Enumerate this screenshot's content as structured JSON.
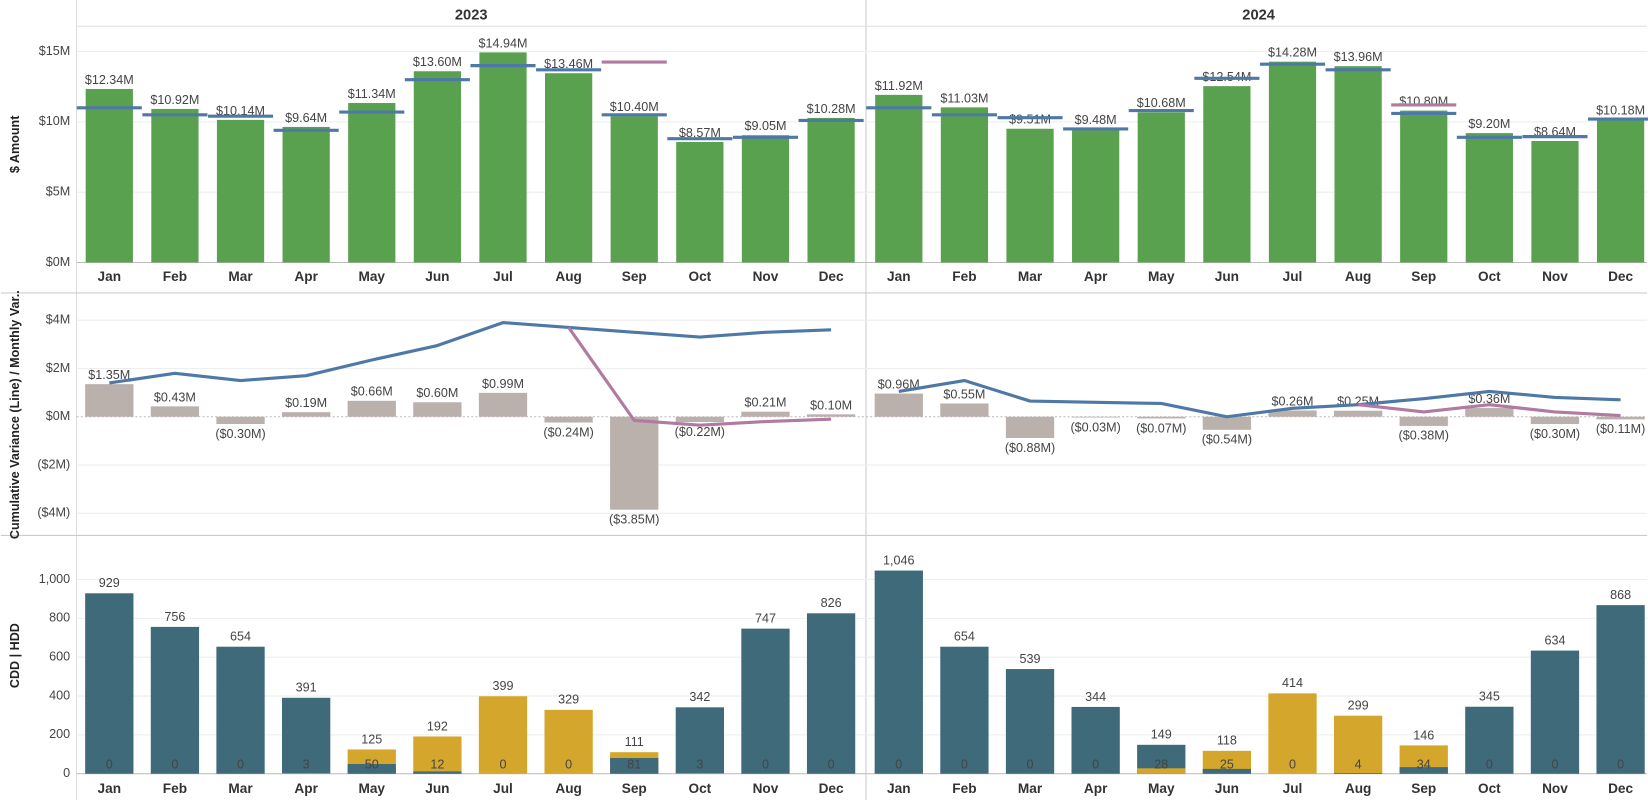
{
  "years": [
    "2023",
    "2024"
  ],
  "chart_data": [
    {
      "type": "bar",
      "ylabel": "$ Amount",
      "categories": [
        "Jan",
        "Feb",
        "Mar",
        "Apr",
        "May",
        "Jun",
        "Jul",
        "Aug",
        "Sep",
        "Oct",
        "Nov",
        "Dec"
      ],
      "ylim": [
        0,
        16.8
      ],
      "yticks": [
        {
          "value": 0,
          "label": "$0M"
        },
        {
          "value": 5,
          "label": "$5M"
        },
        {
          "value": 10,
          "label": "$10M"
        },
        {
          "value": 15,
          "label": "$15M"
        }
      ],
      "grid": true,
      "series": [
        {
          "type": "bar",
          "color": "#59a14f",
          "values": [
            [
              12.34,
              10.92,
              10.14,
              9.64,
              11.34,
              13.6,
              14.94,
              13.46,
              10.4,
              8.57,
              9.05,
              10.28
            ],
            [
              11.92,
              11.03,
              9.51,
              9.48,
              10.68,
              12.54,
              14.28,
              13.96,
              10.8,
              9.2,
              8.64,
              10.18
            ]
          ],
          "value_labels": [
            [
              "$12.34M",
              "$10.92M",
              "$10.14M",
              "$9.64M",
              "$11.34M",
              "$13.60M",
              "$14.94M",
              "$13.46M",
              "$10.40M",
              "$8.57M",
              "$9.05M",
              "$10.28M"
            ],
            [
              "$11.92M",
              "$11.03M",
              "$9.51M",
              "$9.48M",
              "$10.68M",
              "$12.54M",
              "$14.28M",
              "$13.96M",
              "$10.80M",
              "$9.20M",
              "$8.64M",
              "$10.18M"
            ]
          ]
        },
        {
          "type": "tick",
          "color": "#4e79a7",
          "values": [
            [
              11.0,
              10.5,
              10.4,
              9.4,
              10.7,
              13.0,
              14.0,
              13.7,
              10.5,
              8.8,
              8.9,
              10.1
            ],
            [
              11.0,
              10.5,
              10.3,
              9.5,
              10.8,
              13.1,
              14.1,
              13.7,
              10.6,
              8.9,
              8.95,
              10.2
            ]
          ]
        },
        {
          "type": "tick",
          "color": "#b07aa1",
          "values": [
            [
              null,
              null,
              null,
              null,
              null,
              null,
              null,
              null,
              14.25,
              null,
              null,
              null
            ],
            [
              null,
              null,
              null,
              null,
              null,
              null,
              null,
              null,
              11.2,
              null,
              null,
              null
            ]
          ]
        }
      ]
    },
    {
      "type": "bar",
      "ylabel": "Cumulative Variance (Line) / Monthly Var..",
      "categories": [
        "Jan",
        "Feb",
        "Mar",
        "Apr",
        "May",
        "Jun",
        "Jul",
        "Aug",
        "Sep",
        "Oct",
        "Nov",
        "Dec"
      ],
      "ylim": [
        -4.83,
        5
      ],
      "yticks": [
        {
          "value": -4,
          "label": "($4M)"
        },
        {
          "value": -2,
          "label": "($2M)"
        },
        {
          "value": 0,
          "label": "$0M"
        },
        {
          "value": 2,
          "label": "$2M"
        },
        {
          "value": 4,
          "label": "$4M"
        }
      ],
      "grid": true,
      "series": [
        {
          "type": "bar",
          "color": "#bab0ac",
          "values": [
            [
              1.35,
              0.43,
              -0.3,
              0.19,
              0.66,
              0.6,
              0.99,
              -0.24,
              -3.85,
              -0.22,
              0.21,
              0.1
            ],
            [
              0.96,
              0.55,
              -0.88,
              -0.03,
              -0.07,
              -0.54,
              0.26,
              0.25,
              -0.38,
              0.36,
              -0.3,
              -0.11
            ]
          ],
          "value_labels": [
            [
              "$1.35M",
              "$0.43M",
              "($0.30M)",
              "$0.19M",
              "$0.66M",
              "$0.60M",
              "$0.99M",
              "($0.24M)",
              "($3.85M)",
              "($0.22M)",
              "$0.21M",
              "$0.10M"
            ],
            [
              "$0.96M",
              "$0.55M",
              "($0.88M)",
              "($0.03M)",
              "($0.07M)",
              "($0.54M)",
              "$0.26M",
              "$0.25M",
              "($0.38M)",
              "$0.36M",
              "($0.30M)",
              "($0.11M)"
            ]
          ]
        },
        {
          "type": "line",
          "color": "#4e79a7",
          "values": [
            [
              1.4,
              1.8,
              1.5,
              1.7,
              2.35,
              2.95,
              3.9,
              3.7,
              3.5,
              3.3,
              3.5,
              3.6
            ],
            [
              1.05,
              1.5,
              0.65,
              0.6,
              0.55,
              0,
              0.35,
              0.5,
              0.75,
              1.05,
              0.8,
              0.7
            ]
          ]
        },
        {
          "type": "line",
          "color": "#b07aa1",
          "values": [
            [
              null,
              null,
              null,
              null,
              null,
              null,
              null,
              3.7,
              -0.15,
              -0.35,
              -0.2,
              -0.1
            ],
            [
              null,
              null,
              null,
              null,
              null,
              null,
              null,
              0.5,
              0.2,
              0.5,
              0.2,
              0.05
            ]
          ]
        }
      ]
    },
    {
      "type": "overlay",
      "ylabel": "CDD | HDD",
      "categories": [
        "Jan",
        "Feb",
        "Mar",
        "Apr",
        "May",
        "Jun",
        "Jul",
        "Aug",
        "Sep",
        "Oct",
        "Nov",
        "Dec"
      ],
      "ylim": [
        0,
        1216
      ],
      "yticks": [
        0,
        200,
        400,
        600,
        800,
        {
          "value": 1000,
          "label": "1,000"
        }
      ],
      "grid": true,
      "series": [
        {
          "type": "bar",
          "color": "#3f6a7a",
          "values": [
            [
              929,
              756,
              654,
              391,
              50,
              12,
              0,
              0,
              81,
              342,
              747,
              826
            ],
            [
              1046,
              654,
              539,
              344,
              149,
              25,
              0,
              4,
              34,
              345,
              634,
              868
            ]
          ],
          "value_labels": [
            [
              "929",
              "756",
              "654",
              "391",
              "50",
              "12",
              "0",
              "0",
              "81",
              "342",
              "747",
              "826"
            ],
            [
              "1,046",
              "654",
              "539",
              "344",
              "149",
              "25",
              "0",
              "4",
              "34",
              "345",
              "634",
              "868"
            ]
          ]
        },
        {
          "type": "bar",
          "color": "#d4a72c",
          "values": [
            [
              0,
              0,
              0,
              3,
              125,
              192,
              399,
              329,
              111,
              3,
              0,
              0
            ],
            [
              0,
              0,
              0,
              0,
              28,
              118,
              414,
              299,
              146,
              0,
              0,
              0
            ]
          ]
        }
      ]
    }
  ]
}
